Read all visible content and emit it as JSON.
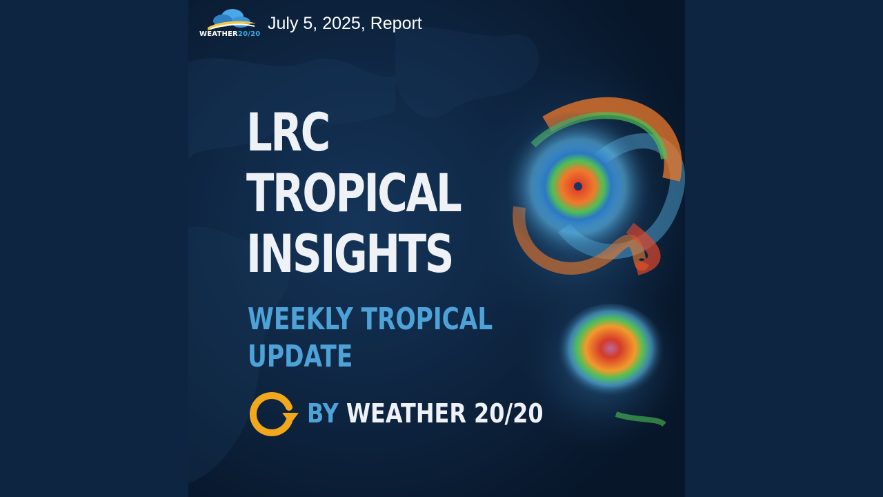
{
  "logo": {
    "word": "WEATHER",
    "number": "20/20"
  },
  "report_date": "July 5, 2025, Report",
  "title_lines": [
    "LRC",
    "TROPICAL",
    "INSIGHTS"
  ],
  "subtitle_lines": [
    "WEEKLY TROPICAL",
    "UPDATE"
  ],
  "byline": {
    "prefix": "BY",
    "brand": "WEATHER 20/20"
  },
  "colors": {
    "page_background": "#0e2542",
    "poster_background": "#0c2340",
    "title_text": "#eef2f6",
    "subtitle_text": "#4da2d8",
    "cycle_icon": "#f2a81d",
    "storm_core": "#e0462a",
    "storm_mid": "#f2a12b",
    "storm_outer": "#4fbf55",
    "cloud_blue": "#5ab6e6"
  },
  "icons": {
    "logo": "cloud-logo-icon",
    "byline": "cycle-arrow-icon"
  }
}
